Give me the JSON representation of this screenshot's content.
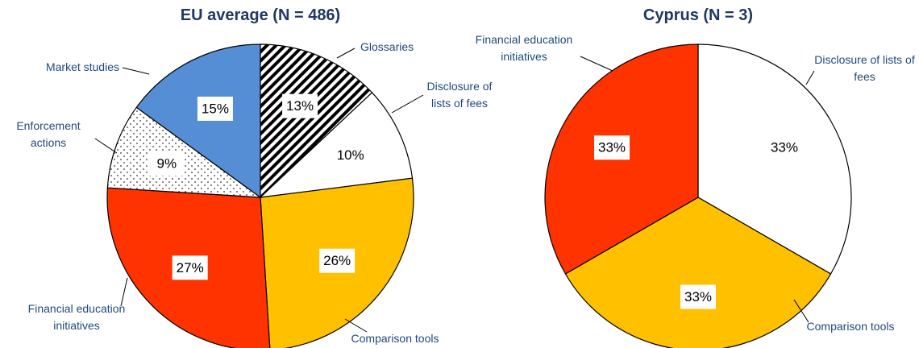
{
  "chart_data": [
    {
      "type": "pie",
      "title": "EU average (N = 486)",
      "categories": [
        "Glossaries",
        "Disclosure of lists of fees",
        "Comparison tools",
        "Financial education initiatives",
        "Enforcement actions",
        "Market studies"
      ],
      "values": [
        13,
        10,
        26,
        27,
        9,
        15
      ],
      "value_labels": [
        "13%",
        "10%",
        "26%",
        "27%",
        "9%",
        "15%"
      ],
      "colors": [
        "hatch",
        "#ffffff",
        "#ffc000",
        "#ff3300",
        "dots",
        "#558ed5"
      ]
    },
    {
      "type": "pie",
      "title": "Cyprus (N = 3)",
      "categories": [
        "Disclosure of lists of fees",
        "Comparison tools",
        "Financial education initiatives"
      ],
      "values": [
        33,
        33,
        33
      ],
      "value_labels": [
        "33%",
        "33%",
        "33%"
      ],
      "colors": [
        "#ffffff",
        "#ffc000",
        "#ff3300"
      ]
    }
  ]
}
